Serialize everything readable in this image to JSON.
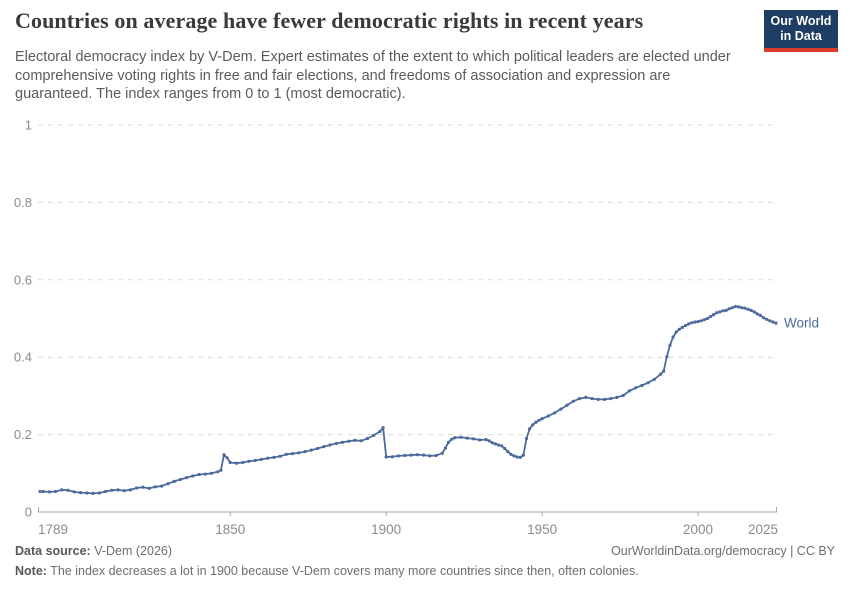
{
  "header": {
    "title": "Countries on average have fewer democratic rights in recent years",
    "subtitle": "Electoral democracy index by V-Dem. Expert estimates of the extent to which political leaders are elected under comprehensive voting rights in free and fair elections, and freedoms of association and expression are guaranteed. The index ranges from 0 to 1 (most democratic).",
    "logo": {
      "line1": "Our World",
      "line2": "in Data",
      "bg_color": "#1d3d63",
      "accent_color": "#dc3b2b"
    }
  },
  "chart_data": {
    "type": "line",
    "title": "Electoral democracy index, world average",
    "xlabel": "",
    "ylabel": "",
    "xlim": [
      1789,
      2025
    ],
    "ylim": [
      0,
      1
    ],
    "x_ticks": [
      1789,
      1850,
      1900,
      1950,
      2000,
      2025
    ],
    "y_ticks": [
      0,
      0.2,
      0.4,
      0.6,
      0.8,
      1
    ],
    "grid": "horizontal-dashed",
    "legend_position": "end-of-line-label",
    "line_color": "#4c6a9c",
    "grid_color": "#dcdcdc",
    "axis_color": "#a5a5a5",
    "tick_label_color": "#8b8b8b",
    "series": [
      {
        "name": "World",
        "points": [
          [
            1789,
            0.053
          ],
          [
            1790,
            0.053
          ],
          [
            1792,
            0.052
          ],
          [
            1794,
            0.053
          ],
          [
            1796,
            0.057
          ],
          [
            1798,
            0.056
          ],
          [
            1800,
            0.052
          ],
          [
            1802,
            0.05
          ],
          [
            1804,
            0.049
          ],
          [
            1806,
            0.048
          ],
          [
            1808,
            0.049
          ],
          [
            1810,
            0.053
          ],
          [
            1812,
            0.056
          ],
          [
            1814,
            0.057
          ],
          [
            1816,
            0.055
          ],
          [
            1818,
            0.057
          ],
          [
            1820,
            0.062
          ],
          [
            1822,
            0.064
          ],
          [
            1824,
            0.061
          ],
          [
            1826,
            0.065
          ],
          [
            1828,
            0.067
          ],
          [
            1830,
            0.073
          ],
          [
            1832,
            0.079
          ],
          [
            1834,
            0.084
          ],
          [
            1836,
            0.089
          ],
          [
            1838,
            0.093
          ],
          [
            1840,
            0.097
          ],
          [
            1842,
            0.098
          ],
          [
            1844,
            0.1
          ],
          [
            1846,
            0.104
          ],
          [
            1847,
            0.108
          ],
          [
            1848,
            0.148
          ],
          [
            1849,
            0.14
          ],
          [
            1850,
            0.128
          ],
          [
            1852,
            0.126
          ],
          [
            1854,
            0.128
          ],
          [
            1856,
            0.131
          ],
          [
            1858,
            0.133
          ],
          [
            1860,
            0.136
          ],
          [
            1862,
            0.139
          ],
          [
            1864,
            0.141
          ],
          [
            1866,
            0.144
          ],
          [
            1868,
            0.149
          ],
          [
            1870,
            0.151
          ],
          [
            1872,
            0.153
          ],
          [
            1874,
            0.156
          ],
          [
            1876,
            0.16
          ],
          [
            1878,
            0.164
          ],
          [
            1880,
            0.169
          ],
          [
            1882,
            0.173
          ],
          [
            1884,
            0.177
          ],
          [
            1886,
            0.18
          ],
          [
            1888,
            0.183
          ],
          [
            1890,
            0.185
          ],
          [
            1892,
            0.184
          ],
          [
            1894,
            0.19
          ],
          [
            1896,
            0.198
          ],
          [
            1898,
            0.208
          ],
          [
            1899,
            0.218
          ],
          [
            1900,
            0.142
          ],
          [
            1902,
            0.143
          ],
          [
            1904,
            0.145
          ],
          [
            1906,
            0.146
          ],
          [
            1908,
            0.147
          ],
          [
            1910,
            0.148
          ],
          [
            1912,
            0.147
          ],
          [
            1914,
            0.145
          ],
          [
            1916,
            0.146
          ],
          [
            1918,
            0.152
          ],
          [
            1919,
            0.165
          ],
          [
            1920,
            0.18
          ],
          [
            1921,
            0.188
          ],
          [
            1922,
            0.192
          ],
          [
            1924,
            0.193
          ],
          [
            1926,
            0.191
          ],
          [
            1928,
            0.189
          ],
          [
            1930,
            0.186
          ],
          [
            1932,
            0.187
          ],
          [
            1933,
            0.184
          ],
          [
            1934,
            0.179
          ],
          [
            1935,
            0.176
          ],
          [
            1936,
            0.173
          ],
          [
            1937,
            0.171
          ],
          [
            1938,
            0.164
          ],
          [
            1939,
            0.156
          ],
          [
            1940,
            0.149
          ],
          [
            1941,
            0.145
          ],
          [
            1942,
            0.142
          ],
          [
            1943,
            0.141
          ],
          [
            1944,
            0.147
          ],
          [
            1945,
            0.19
          ],
          [
            1946,
            0.215
          ],
          [
            1947,
            0.225
          ],
          [
            1948,
            0.232
          ],
          [
            1949,
            0.237
          ],
          [
            1950,
            0.241
          ],
          [
            1952,
            0.248
          ],
          [
            1954,
            0.256
          ],
          [
            1956,
            0.266
          ],
          [
            1958,
            0.276
          ],
          [
            1960,
            0.286
          ],
          [
            1962,
            0.293
          ],
          [
            1964,
            0.296
          ],
          [
            1966,
            0.293
          ],
          [
            1968,
            0.291
          ],
          [
            1970,
            0.291
          ],
          [
            1972,
            0.293
          ],
          [
            1974,
            0.296
          ],
          [
            1976,
            0.301
          ],
          [
            1978,
            0.313
          ],
          [
            1980,
            0.321
          ],
          [
            1982,
            0.327
          ],
          [
            1984,
            0.334
          ],
          [
            1986,
            0.343
          ],
          [
            1988,
            0.356
          ],
          [
            1989,
            0.364
          ],
          [
            1990,
            0.401
          ],
          [
            1991,
            0.431
          ],
          [
            1992,
            0.452
          ],
          [
            1993,
            0.465
          ],
          [
            1994,
            0.472
          ],
          [
            1995,
            0.477
          ],
          [
            1996,
            0.482
          ],
          [
            1997,
            0.486
          ],
          [
            1998,
            0.489
          ],
          [
            1999,
            0.491
          ],
          [
            2000,
            0.492
          ],
          [
            2001,
            0.494
          ],
          [
            2002,
            0.497
          ],
          [
            2003,
            0.5
          ],
          [
            2004,
            0.505
          ],
          [
            2005,
            0.51
          ],
          [
            2006,
            0.515
          ],
          [
            2007,
            0.517
          ],
          [
            2008,
            0.52
          ],
          [
            2009,
            0.521
          ],
          [
            2010,
            0.525
          ],
          [
            2011,
            0.528
          ],
          [
            2012,
            0.531
          ],
          [
            2013,
            0.53
          ],
          [
            2014,
            0.528
          ],
          [
            2015,
            0.527
          ],
          [
            2016,
            0.524
          ],
          [
            2017,
            0.521
          ],
          [
            2018,
            0.517
          ],
          [
            2019,
            0.512
          ],
          [
            2020,
            0.508
          ],
          [
            2021,
            0.502
          ],
          [
            2022,
            0.498
          ],
          [
            2023,
            0.494
          ],
          [
            2024,
            0.491
          ],
          [
            2025,
            0.488
          ]
        ]
      }
    ]
  },
  "footer": {
    "source_label": "Data source:",
    "source_value": " V-Dem (2026)",
    "link_text": "OurWorldinData.org/democracy | CC BY",
    "note_label": "Note:",
    "note_value": " The index decreases a lot in 1900 because V-Dem covers many more countries since then, often colonies."
  }
}
